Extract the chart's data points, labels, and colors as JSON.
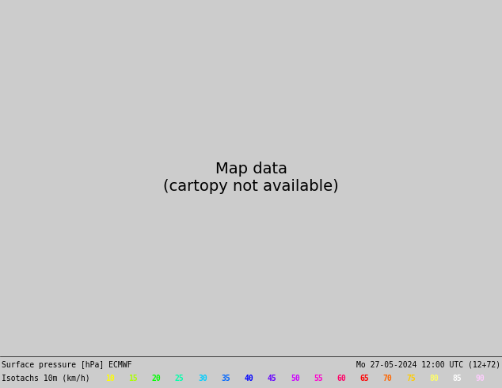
{
  "title_left": "Surface pressure [hPa] ECMWF",
  "title_right": "Mo 27-05-2024 12:00 UTC (12+72)",
  "legend_label": "Isotachs 10m (km/h)",
  "isotach_values": [
    10,
    15,
    20,
    25,
    30,
    35,
    40,
    45,
    50,
    55,
    60,
    65,
    70,
    75,
    80,
    85,
    90
  ],
  "isotach_colors": [
    "#ffff00",
    "#aaff00",
    "#00ff00",
    "#00ffaa",
    "#00ccff",
    "#0066ff",
    "#0000ff",
    "#6600ff",
    "#cc00ff",
    "#ff00cc",
    "#ff0066",
    "#ff0000",
    "#ff6600",
    "#ffcc00",
    "#ffff66",
    "#ffffff",
    "#ffccff"
  ],
  "map_extent": [
    -130,
    -60,
    22,
    55
  ],
  "fig_width": 6.34,
  "fig_height": 4.9,
  "dpi": 100,
  "legend_bg": "#cccccc",
  "map_land_color": "#90cc60",
  "map_ocean_color": "#e8f4e8",
  "border_color": "#000000",
  "grid_color": "#888888"
}
